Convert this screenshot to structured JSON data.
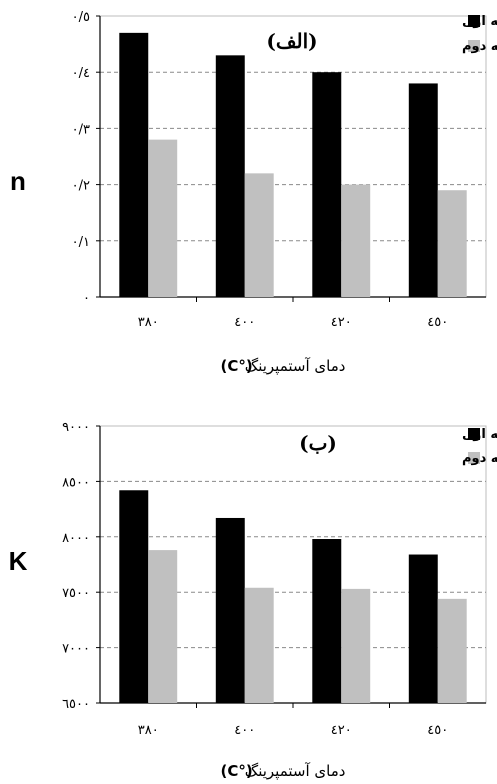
{
  "chart_data": [
    {
      "type": "bar",
      "panel_label": "(الف)",
      "categories": [
        "۳۸۰",
        "٤۰۰",
        "٤۲۰",
        "٤٥۰"
      ],
      "series": [
        {
          "name": "مرحله اول",
          "values": [
            0.47,
            0.43,
            0.4,
            0.38
          ],
          "color": "#000000"
        },
        {
          "name": "مرحله دوم",
          "values": [
            0.28,
            0.22,
            0.2,
            0.19
          ],
          "color": "#c0c0c0"
        }
      ],
      "ylabel": "n",
      "xlabel": "دمای آستمپرینگ",
      "xlabel_unit": "(°C)",
      "ylim": [
        0,
        0.5
      ],
      "yticks": [
        {
          "value": 0,
          "label": "۰"
        },
        {
          "value": 0.1,
          "label": "۰/۱"
        },
        {
          "value": 0.2,
          "label": "۰/۲"
        },
        {
          "value": 0.3,
          "label": "۰/۳"
        },
        {
          "value": 0.4,
          "label": "۰/٤"
        },
        {
          "value": 0.5,
          "label": "۰/٥"
        }
      ],
      "grid": true,
      "legend": "top-right"
    },
    {
      "type": "bar",
      "panel_label": "(ب)",
      "categories": [
        "۳۸۰",
        "٤۰۰",
        "٤۲۰",
        "٤٥۰"
      ],
      "series": [
        {
          "name": "مرحله اول",
          "values": [
            8420,
            8170,
            7980,
            7840
          ],
          "color": "#000000"
        },
        {
          "name": "مرحله دوم",
          "values": [
            7880,
            7540,
            7530,
            7440
          ],
          "color": "#c0c0c0"
        }
      ],
      "ylabel": "K",
      "xlabel": "دمای آستمپرینگ",
      "xlabel_unit": "(°C)",
      "ylim": [
        6500,
        9000
      ],
      "yticks": [
        {
          "value": 6500,
          "label": "٦٥۰۰"
        },
        {
          "value": 7000,
          "label": "۷۰۰۰"
        },
        {
          "value": 7500,
          "label": "۷٥۰۰"
        },
        {
          "value": 8000,
          "label": "۸۰۰۰"
        },
        {
          "value": 8500,
          "label": "۸٥۰۰"
        },
        {
          "value": 9000,
          "label": "۹۰۰۰"
        }
      ],
      "grid": true,
      "legend": "top-right"
    }
  ]
}
